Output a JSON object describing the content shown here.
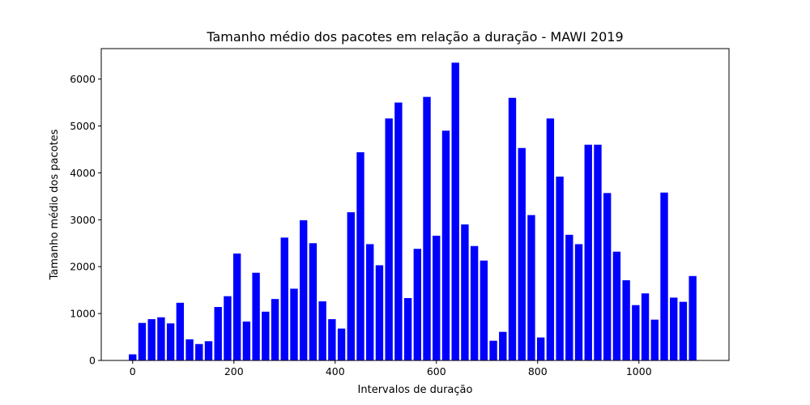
{
  "chart_data": {
    "type": "bar",
    "title": "Tamanho médio dos pacotes em relação a duração - MAWI 2019",
    "xlabel": "Intervalos de duração",
    "ylabel": "Tamanho médio dos pacotes",
    "bar_color": "#0000ff",
    "xlim": [
      -62,
      1178
    ],
    "ylim": [
      0,
      6650
    ],
    "xticks": [
      0,
      200,
      400,
      600,
      800,
      1000
    ],
    "yticks": [
      0,
      1000,
      2000,
      3000,
      4000,
      5000,
      6000
    ],
    "grid": false,
    "bar_width": 15,
    "x": [
      0,
      18.75,
      37.5,
      56.25,
      75,
      93.75,
      112.5,
      131.25,
      150,
      168.75,
      187.5,
      206.25,
      225,
      243.75,
      262.5,
      281.25,
      300,
      318.75,
      337.5,
      356.25,
      375,
      393.75,
      412.5,
      431.25,
      450,
      468.75,
      487.5,
      506.25,
      525,
      543.75,
      562.5,
      581.25,
      600,
      618.75,
      637.5,
      656.25,
      675,
      693.75,
      712.5,
      731.25,
      750,
      768.75,
      787.5,
      806.25,
      825,
      843.75,
      862.5,
      881.25,
      900,
      918.75,
      937.5,
      956.25,
      975,
      993.75,
      1012.5,
      1031.25,
      1050,
      1068.75,
      1087.5,
      1106.25
    ],
    "values": [
      130,
      800,
      880,
      920,
      790,
      1230,
      450,
      350,
      410,
      1140,
      1370,
      2280,
      830,
      1870,
      1040,
      1310,
      2620,
      1530,
      2990,
      2500,
      1260,
      880,
      680,
      3160,
      4440,
      2480,
      2030,
      5160,
      5500,
      1330,
      2380,
      5620,
      2660,
      4900,
      6350,
      2900,
      2440,
      2130,
      420,
      610,
      5600,
      4530,
      3100,
      490,
      5160,
      3920,
      2680,
      2480,
      4600,
      4600,
      3570,
      2320,
      1710,
      1180,
      1430,
      870,
      3580,
      1340,
      1250,
      1800
    ]
  }
}
